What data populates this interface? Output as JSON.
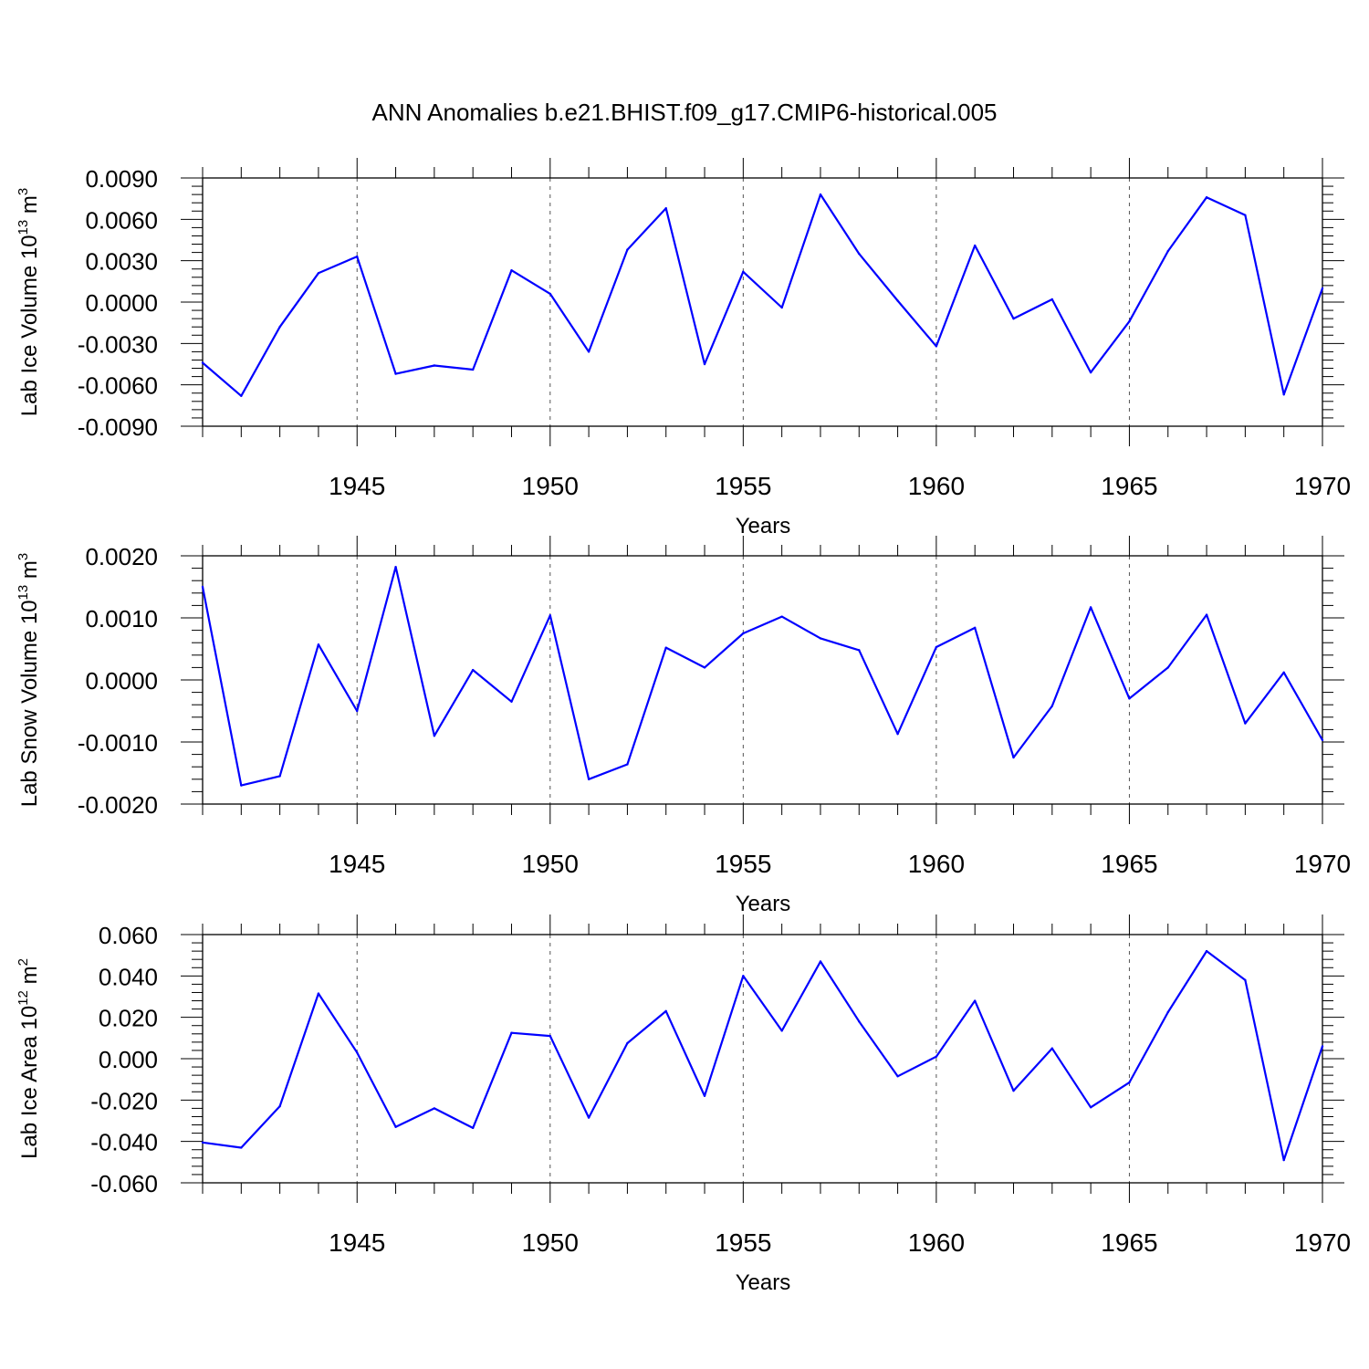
{
  "title": "ANN Anomalies b.e21.BHIST.f09_g17.CMIP6-historical.005",
  "line_color": "#0000ff",
  "chart_data": [
    {
      "type": "line",
      "xlabel": "Years",
      "ylabel": "Lab Ice Volume 10",
      "ylabel_exp": "13",
      "ylabel_unit": "m",
      "ylabel_unit_exp": "3",
      "xlim": [
        1941,
        1970
      ],
      "ylim": [
        -0.009,
        0.009
      ],
      "yticks": [
        -0.009,
        -0.006,
        -0.003,
        0.0,
        0.003,
        0.006,
        0.009
      ],
      "ytick_labels": [
        "-0.0090",
        "-0.0060",
        "-0.0030",
        "0.0000",
        "0.0030",
        "0.0060",
        "0.0090"
      ],
      "xticks": [
        1945,
        1950,
        1955,
        1960,
        1965,
        1970
      ],
      "xtick_labels": [
        "1945",
        "1950",
        "1955",
        "1960",
        "1965",
        "1970"
      ],
      "grid_x": [
        1945,
        1950,
        1955,
        1960,
        1965
      ],
      "x": [
        1941,
        1942,
        1943,
        1944,
        1945,
        1946,
        1947,
        1948,
        1949,
        1950,
        1951,
        1952,
        1953,
        1954,
        1955,
        1956,
        1957,
        1958,
        1959,
        1960,
        1961,
        1962,
        1963,
        1964,
        1965,
        1966,
        1967,
        1968,
        1969,
        1970
      ],
      "y": [
        -0.0044,
        -0.0068,
        -0.0018,
        0.0021,
        0.0033,
        -0.0052,
        -0.0046,
        -0.0049,
        0.0023,
        0.0006,
        -0.0036,
        0.0038,
        0.0068,
        -0.0045,
        0.0022,
        -0.0004,
        0.0078,
        0.0035,
        0.0001,
        -0.0032,
        0.0041,
        -0.0012,
        0.0002,
        -0.0051,
        -0.0014,
        0.0037,
        0.0076,
        0.0063,
        -0.0067,
        0.001
      ]
    },
    {
      "type": "line",
      "xlabel": "Years",
      "ylabel": "Lab Snow Volume 10",
      "ylabel_exp": "13",
      "ylabel_unit": "m",
      "ylabel_unit_exp": "3",
      "xlim": [
        1941,
        1970
      ],
      "ylim": [
        -0.002,
        0.002
      ],
      "yticks": [
        -0.002,
        -0.001,
        0.0,
        0.001,
        0.002
      ],
      "ytick_labels": [
        "-0.0020",
        "-0.0010",
        "0.0000",
        "0.0010",
        "0.0020"
      ],
      "xticks": [
        1945,
        1950,
        1955,
        1960,
        1965,
        1970
      ],
      "xtick_labels": [
        "1945",
        "1950",
        "1955",
        "1960",
        "1965",
        "1970"
      ],
      "grid_x": [
        1945,
        1950,
        1955,
        1960,
        1965
      ],
      "x": [
        1941,
        1942,
        1943,
        1944,
        1945,
        1946,
        1947,
        1948,
        1949,
        1950,
        1951,
        1952,
        1953,
        1954,
        1955,
        1956,
        1957,
        1958,
        1959,
        1960,
        1961,
        1962,
        1963,
        1964,
        1965,
        1966,
        1967,
        1968,
        1969,
        1970
      ],
      "y": [
        0.0015,
        -0.0017,
        -0.00155,
        0.00057,
        -0.0005,
        0.00182,
        -0.0009,
        0.00016,
        -0.00035,
        0.00104,
        -0.0016,
        -0.00136,
        0.00052,
        0.0002,
        0.00075,
        0.00102,
        0.00067,
        0.00048,
        -0.00087,
        0.00053,
        0.00084,
        -0.00125,
        -0.00042,
        0.00117,
        -0.0003,
        0.0002,
        0.00105,
        -0.0007,
        0.00012,
        -0.00097
      ]
    },
    {
      "type": "line",
      "xlabel": "Years",
      "ylabel": "Lab Ice Area 10",
      "ylabel_exp": "12",
      "ylabel_unit": "m",
      "ylabel_unit_exp": "2",
      "xlim": [
        1941,
        1970
      ],
      "ylim": [
        -0.06,
        0.06
      ],
      "yticks": [
        -0.06,
        -0.04,
        -0.02,
        0.0,
        0.02,
        0.04,
        0.06
      ],
      "ytick_labels": [
        "-0.060",
        "-0.040",
        "-0.020",
        "0.000",
        "0.020",
        "0.040",
        "0.060"
      ],
      "xticks": [
        1945,
        1950,
        1955,
        1960,
        1965,
        1970
      ],
      "xtick_labels": [
        "1945",
        "1950",
        "1955",
        "1960",
        "1965",
        "1970"
      ],
      "grid_x": [
        1945,
        1950,
        1955,
        1960,
        1965
      ],
      "x": [
        1941,
        1942,
        1943,
        1944,
        1945,
        1946,
        1947,
        1948,
        1949,
        1950,
        1951,
        1952,
        1953,
        1954,
        1955,
        1956,
        1957,
        1958,
        1959,
        1960,
        1961,
        1962,
        1963,
        1964,
        1965,
        1966,
        1967,
        1968,
        1969,
        1970
      ],
      "y": [
        -0.0405,
        -0.043,
        -0.023,
        0.0315,
        0.003,
        -0.033,
        -0.024,
        -0.0335,
        0.0125,
        0.011,
        -0.0285,
        0.0075,
        0.023,
        -0.018,
        0.04,
        0.0135,
        0.047,
        0.018,
        -0.0085,
        0.001,
        0.028,
        -0.0155,
        0.005,
        -0.0235,
        -0.0115,
        0.0225,
        0.052,
        0.038,
        -0.049,
        0.006
      ]
    }
  ]
}
